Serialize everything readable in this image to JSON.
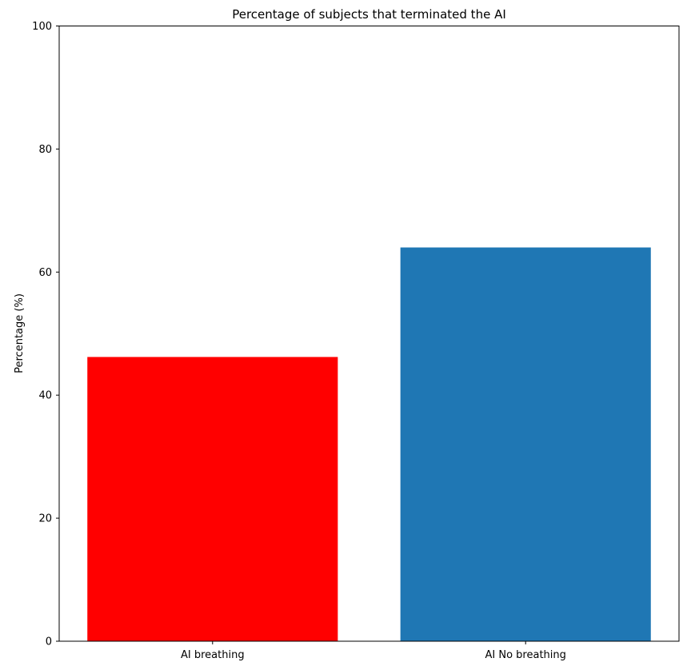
{
  "chart_data": {
    "type": "bar",
    "title": "Percentage of subjects that terminated the AI",
    "xlabel": "",
    "ylabel": "Percentage (%)",
    "ylim": [
      0,
      100
    ],
    "yticks": [
      0,
      20,
      40,
      60,
      80,
      100
    ],
    "categories": [
      "AI breathing",
      "AI No breathing"
    ],
    "values": [
      46.2,
      64.0
    ],
    "colors": [
      "#ff0000",
      "#1f77b4"
    ],
    "grid": false,
    "legend": "none"
  }
}
